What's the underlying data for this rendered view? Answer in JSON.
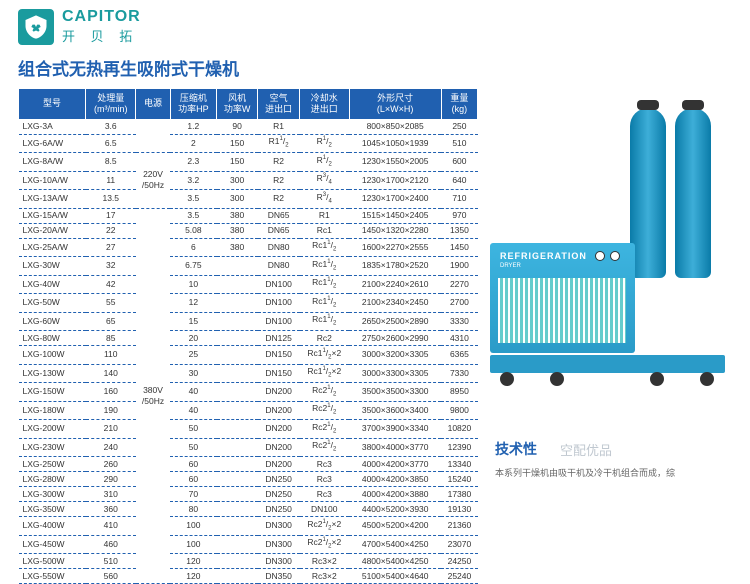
{
  "brand": {
    "en": "CAPITOR",
    "cn": "开 贝 拓"
  },
  "title": "组合式无热再生吸附式干燥机",
  "headers": [
    "型号",
    "处理量\n(m³/min)",
    "电源",
    "压缩机\n功率HP",
    "风机\n功率W",
    "空气\n进出口",
    "冷却水\n进出口",
    "外形尺寸\n(L×W×H)",
    "重量\n(kg)"
  ],
  "power1": "220V\n/50Hz",
  "power2": "380V\n/50Hz",
  "dryer_label": "REFRIGERATION",
  "dryer_sub": "DRYER",
  "tech_title": "技术性",
  "tech_sub": "空配优品",
  "tech_desc": "本系列干燥机由吸干机及冷干机组合而成，综",
  "rows": [
    [
      "LXG-3A",
      "3.6",
      "",
      "1.2",
      "90",
      "R1",
      "",
      "800×850×2085",
      "250"
    ],
    [
      "LXG-6A/W",
      "6.5",
      "",
      "2",
      "150",
      "R1¹/₂",
      "R¹/₂",
      "1045×1050×1939",
      "510"
    ],
    [
      "LXG-8A/W",
      "8.5",
      "p1",
      "2.3",
      "150",
      "R2",
      "R¹/₂",
      "1230×1550×2005",
      "600"
    ],
    [
      "LXG-10A/W",
      "11",
      "",
      "3.2",
      "300",
      "R2",
      "R³/₄",
      "1230×1700×2120",
      "640"
    ],
    [
      "LXG-13A/W",
      "13.5",
      "",
      "3.5",
      "300",
      "R2",
      "R³/₄",
      "1230×1700×2400",
      "710"
    ],
    [
      "LXG-15A/W",
      "17",
      "",
      "3.5",
      "380",
      "DN65",
      "R1",
      "1515×1450×2405",
      "970"
    ],
    [
      "LXG-20A/W",
      "22",
      "",
      "5.08",
      "380",
      "DN65",
      "Rc1",
      "1450×1320×2280",
      "1350"
    ],
    [
      "LXG-25A/W",
      "27",
      "",
      "6",
      "380",
      "DN80",
      "Rc1¹/₂",
      "1600×2270×2555",
      "1450"
    ],
    [
      "LXG-30W",
      "32",
      "",
      "6.75",
      "",
      "DN80",
      "Rc1¹/₂",
      "1835×1780×2520",
      "1900"
    ],
    [
      "LXG-40W",
      "42",
      "",
      "10",
      "",
      "DN100",
      "Rc1¹/₂",
      "2100×2240×2610",
      "2270"
    ],
    [
      "LXG-50W",
      "55",
      "",
      "12",
      "",
      "DN100",
      "Rc1¹/₂",
      "2100×2340×2450",
      "2700"
    ],
    [
      "LXG-60W",
      "65",
      "",
      "15",
      "",
      "DN100",
      "Rc1¹/₂",
      "2650×2500×2890",
      "3330"
    ],
    [
      "LXG-80W",
      "85",
      "",
      "20",
      "",
      "DN125",
      "Rc2",
      "2750×2600×2990",
      "4310"
    ],
    [
      "LXG-100W",
      "110",
      "",
      "25",
      "",
      "DN150",
      "Rc1¹/₂×2",
      "3000×3200×3305",
      "6365"
    ],
    [
      "LXG-130W",
      "140",
      "p2",
      "30",
      "",
      "DN150",
      "Rc1¹/₂×2",
      "3000×3300×3305",
      "7330"
    ],
    [
      "LXG-150W",
      "160",
      "",
      "40",
      "",
      "DN200",
      "Rc2¹/₂",
      "3500×3500×3300",
      "8950"
    ],
    [
      "LXG-180W",
      "190",
      "",
      "40",
      "",
      "DN200",
      "Rc2¹/₂",
      "3500×3600×3400",
      "9800"
    ],
    [
      "LXG-200W",
      "210",
      "",
      "50",
      "",
      "DN200",
      "Rc2¹/₂",
      "3700×3900×3340",
      "10820"
    ],
    [
      "LXG-230W",
      "240",
      "",
      "50",
      "",
      "DN200",
      "Rc2¹/₂",
      "3800×4000×3770",
      "12390"
    ],
    [
      "LXG-250W",
      "260",
      "",
      "60",
      "",
      "DN200",
      "Rc3",
      "4000×4200×3770",
      "13340"
    ],
    [
      "LXG-280W",
      "290",
      "",
      "60",
      "",
      "DN250",
      "Rc3",
      "4000×4200×3850",
      "15240"
    ],
    [
      "LXG-300W",
      "310",
      "",
      "70",
      "",
      "DN250",
      "Rc3",
      "4000×4200×3880",
      "17380"
    ],
    [
      "LXG-350W",
      "360",
      "",
      "80",
      "",
      "DN250",
      "DN100",
      "4400×5200×3930",
      "19130"
    ],
    [
      "LXG-400W",
      "410",
      "",
      "100",
      "",
      "DN300",
      "Rc2¹/₂×2",
      "4500×5200×4200",
      "21360"
    ],
    [
      "LXG-450W",
      "460",
      "",
      "100",
      "",
      "DN300",
      "Rc2¹/₂×2",
      "4700×5400×4250",
      "23070"
    ],
    [
      "LXG-500W",
      "510",
      "",
      "120",
      "",
      "DN300",
      "Rc3×2",
      "4800×5400×4250",
      "24250"
    ],
    [
      "LXG-550W",
      "560",
      "",
      "120",
      "",
      "DN350",
      "Rc3×2",
      "5100×5400×4640",
      "25240"
    ]
  ]
}
